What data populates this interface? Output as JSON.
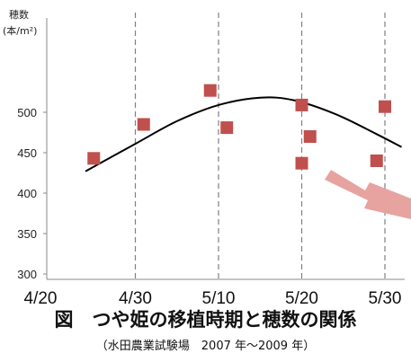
{
  "chart_data": {
    "type": "scatter",
    "title": "図　つや姫の移植時期と穂数の関係",
    "subtitle": "（水田農業試験場　2007 年～2009 年）",
    "ylabel": "穂数",
    "yunit": "(本/m²)",
    "xlabel": "",
    "x_ticks": [
      "4/20",
      "4/30",
      "5/10",
      "5/20",
      "5/30"
    ],
    "y_ticks": [
      "300",
      "350",
      "400",
      "450",
      "500"
    ],
    "xlim": [
      "4/20",
      "5/32"
    ],
    "ylim": [
      300,
      535
    ],
    "grid": "vertical dashed lines at 4/30, 5/10, 5/20, 5/30",
    "legend": "none",
    "points": [
      {
        "x": "4/25",
        "y": 443
      },
      {
        "x": "5/1",
        "y": 485
      },
      {
        "x": "5/9",
        "y": 527
      },
      {
        "x": "5/11",
        "y": 481
      },
      {
        "x": "5/20",
        "y": 509
      },
      {
        "x": "5/21",
        "y": 470
      },
      {
        "x": "5/20",
        "y": 437
      },
      {
        "x": "5/29",
        "y": 440
      },
      {
        "x": "5/30",
        "y": 507
      }
    ],
    "trend_curve": [
      {
        "x": "4/24",
        "y": 427
      },
      {
        "x": "4/30",
        "y": 461
      },
      {
        "x": "5/5",
        "y": 489
      },
      {
        "x": "5/10",
        "y": 509
      },
      {
        "x": "5/15",
        "y": 518
      },
      {
        "x": "5/19",
        "y": 515
      },
      {
        "x": "5/24",
        "y": 498
      },
      {
        "x": "5/29",
        "y": 473
      },
      {
        "x": "6/1",
        "y": 457
      }
    ],
    "annotation": "downward-arrow",
    "colors": {
      "point": "#c0504d",
      "curve": "#000000",
      "arrow": "#e6a3a0",
      "grid": "#808080"
    }
  }
}
